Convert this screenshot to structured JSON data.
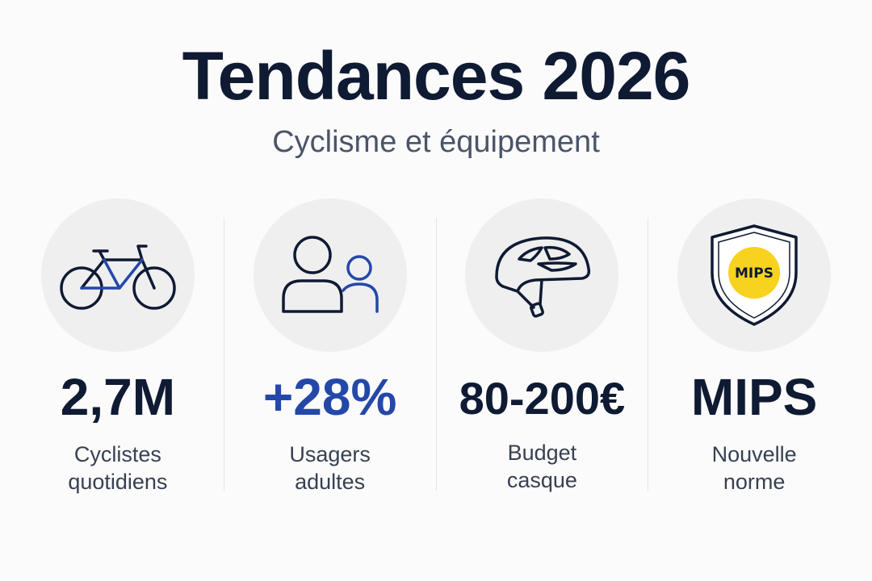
{
  "header": {
    "title": "Tendances 2026",
    "subtitle": "Cyclisme et équipement"
  },
  "stats": [
    {
      "icon": "bicycle-icon",
      "value": "2,7M",
      "label_line1": "Cyclistes",
      "label_line2": "quotidiens"
    },
    {
      "icon": "users-icon",
      "value": "+28%",
      "label_line1": "Usagers",
      "label_line2": "adultes"
    },
    {
      "icon": "helmet-icon",
      "value": "80-200€",
      "label_line1": "Budget",
      "label_line2": "casque"
    },
    {
      "icon": "mips-shield-icon",
      "badge": "MIPS",
      "value": "MIPS",
      "label_line1": "Nouvelle",
      "label_line2": "norme"
    }
  ],
  "colors": {
    "text_dark": "#0f1a33",
    "accent_blue": "#2448a8",
    "mips_yellow": "#f7d21f"
  }
}
